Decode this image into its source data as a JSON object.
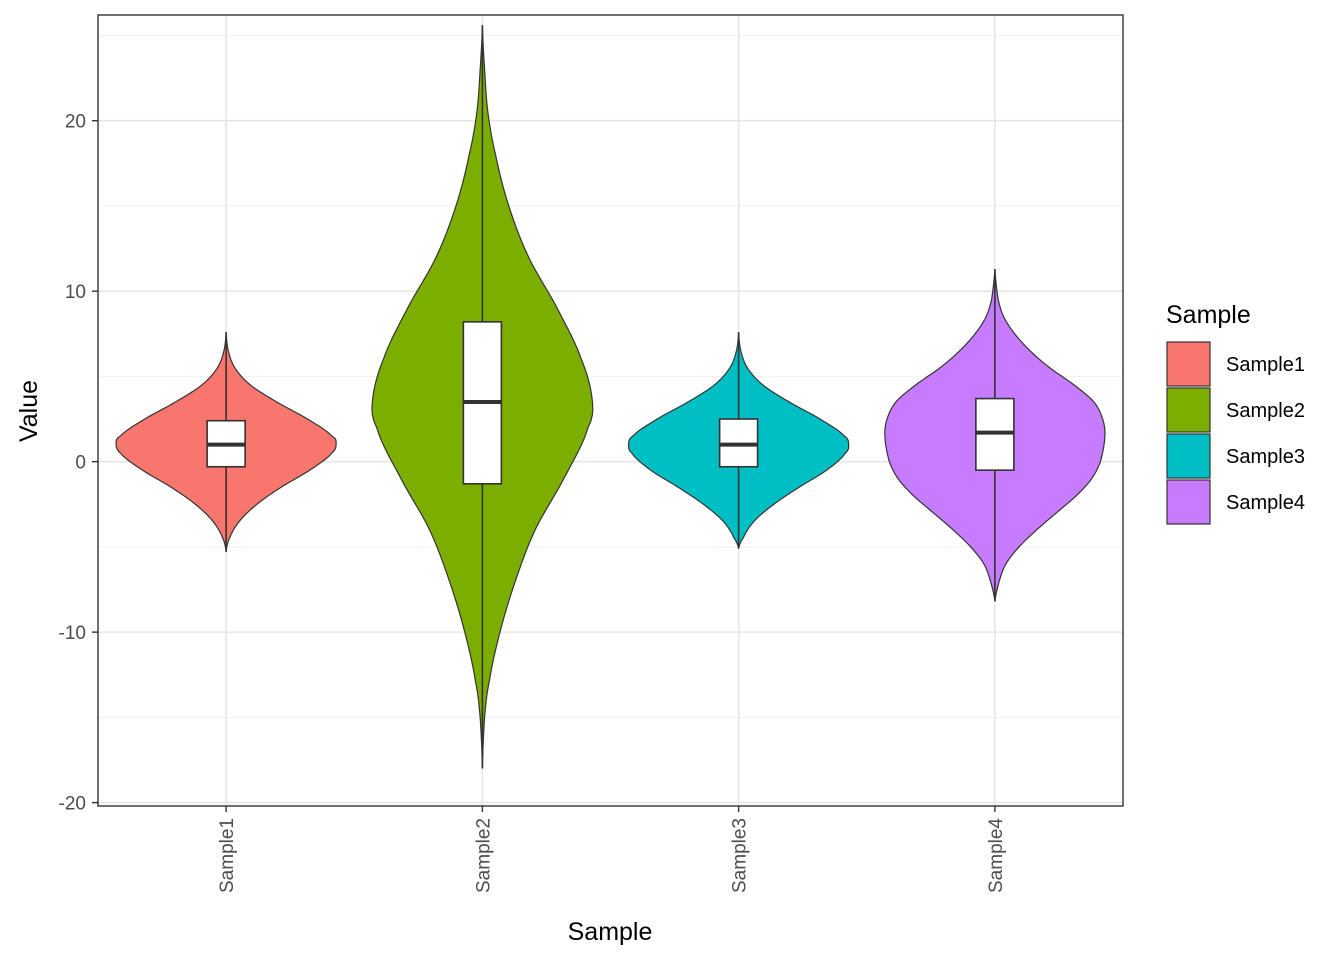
{
  "chart_data": {
    "type": "violin",
    "xlabel": "Sample",
    "ylabel": "Value",
    "categories": [
      "Sample1",
      "Sample2",
      "Sample3",
      "Sample4"
    ],
    "ylim": [
      -20.2,
      26.2
    ],
    "yticks": [
      -20,
      -10,
      0,
      10,
      20
    ],
    "grid": true,
    "legend": {
      "title": "Sample",
      "position": "right",
      "entries": [
        "Sample1",
        "Sample2",
        "Sample3",
        "Sample4"
      ]
    },
    "series": [
      {
        "name": "Sample1",
        "color": "#F8766D",
        "violin_range": [
          -5.3,
          7.6
        ],
        "box": {
          "whisker_low": -5.3,
          "q1": -0.3,
          "median": 1.0,
          "q3": 2.4,
          "whisker_high": 7.6
        },
        "density_profile": [
          [
            -5.3,
            0.0
          ],
          [
            -4.5,
            0.03
          ],
          [
            -3.5,
            0.12
          ],
          [
            -2.5,
            0.28
          ],
          [
            -1.5,
            0.5
          ],
          [
            -0.5,
            0.76
          ],
          [
            0.5,
            0.96
          ],
          [
            1.1,
            1.0
          ],
          [
            1.5,
            0.96
          ],
          [
            2.5,
            0.74
          ],
          [
            3.5,
            0.46
          ],
          [
            4.5,
            0.22
          ],
          [
            5.5,
            0.08
          ],
          [
            6.5,
            0.02
          ],
          [
            7.6,
            0.0
          ]
        ]
      },
      {
        "name": "Sample2",
        "color": "#7CAE00",
        "violin_range": [
          -18.0,
          25.6
        ],
        "box": {
          "whisker_low": -18.0,
          "q1": -1.3,
          "median": 3.5,
          "q3": 8.2,
          "whisker_high": 25.6
        },
        "density_profile": [
          [
            -18.0,
            0.0
          ],
          [
            -15.0,
            0.02
          ],
          [
            -13.0,
            0.06
          ],
          [
            -10.0,
            0.16
          ],
          [
            -7.0,
            0.3
          ],
          [
            -4.0,
            0.48
          ],
          [
            -1.0,
            0.74
          ],
          [
            2.0,
            0.96
          ],
          [
            3.5,
            1.0
          ],
          [
            6.0,
            0.9
          ],
          [
            9.0,
            0.68
          ],
          [
            12.0,
            0.42
          ],
          [
            15.0,
            0.24
          ],
          [
            18.0,
            0.12
          ],
          [
            20.5,
            0.05
          ],
          [
            23.0,
            0.02
          ],
          [
            25.6,
            0.0
          ]
        ]
      },
      {
        "name": "Sample3",
        "color": "#00BFC4",
        "violin_range": [
          -5.1,
          7.6
        ],
        "box": {
          "whisker_low": -5.1,
          "q1": -0.3,
          "median": 1.0,
          "q3": 2.5,
          "whisker_high": 7.6
        },
        "density_profile": [
          [
            -5.1,
            0.0
          ],
          [
            -4.5,
            0.04
          ],
          [
            -3.5,
            0.14
          ],
          [
            -2.5,
            0.32
          ],
          [
            -1.5,
            0.55
          ],
          [
            -0.5,
            0.8
          ],
          [
            0.5,
            0.97
          ],
          [
            1.0,
            1.0
          ],
          [
            1.5,
            0.96
          ],
          [
            2.5,
            0.74
          ],
          [
            3.5,
            0.46
          ],
          [
            4.5,
            0.22
          ],
          [
            5.5,
            0.08
          ],
          [
            6.5,
            0.02
          ],
          [
            7.6,
            0.0
          ]
        ]
      },
      {
        "name": "Sample4",
        "color": "#C77CFF",
        "violin_range": [
          -8.2,
          11.3
        ],
        "box": {
          "whisker_low": -8.2,
          "q1": -0.5,
          "median": 1.7,
          "q3": 3.7,
          "whisker_high": 11.3
        },
        "density_profile": [
          [
            -8.2,
            0.0
          ],
          [
            -7.0,
            0.04
          ],
          [
            -6.0,
            0.1
          ],
          [
            -5.0,
            0.22
          ],
          [
            -4.0,
            0.38
          ],
          [
            -3.0,
            0.56
          ],
          [
            -2.0,
            0.74
          ],
          [
            -1.0,
            0.88
          ],
          [
            0.0,
            0.96
          ],
          [
            1.5,
            1.0
          ],
          [
            2.5,
            0.98
          ],
          [
            3.5,
            0.9
          ],
          [
            4.5,
            0.72
          ],
          [
            5.5,
            0.5
          ],
          [
            6.5,
            0.32
          ],
          [
            7.5,
            0.18
          ],
          [
            8.5,
            0.08
          ],
          [
            9.5,
            0.03
          ],
          [
            11.3,
            0.0
          ]
        ]
      }
    ]
  }
}
